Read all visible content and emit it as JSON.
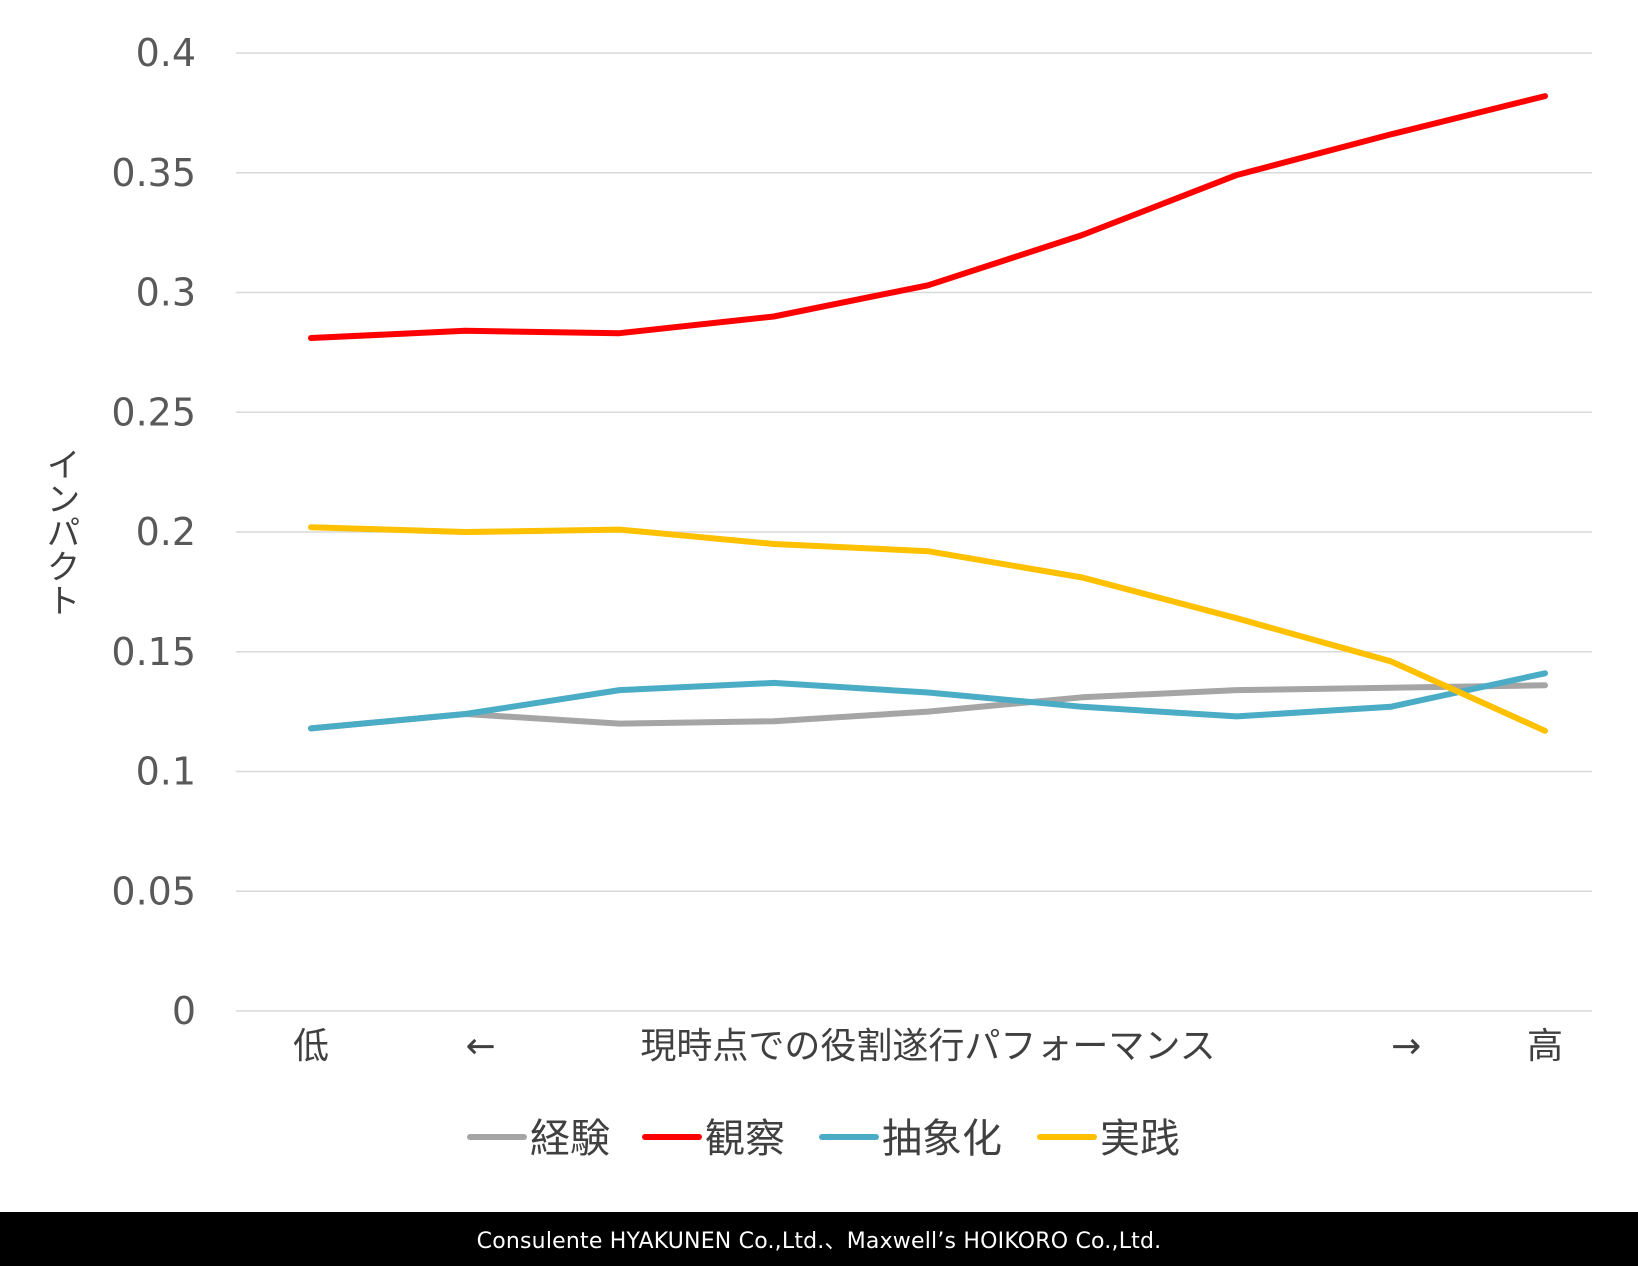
{
  "chart_data": {
    "type": "line",
    "ylabel": "インパクト",
    "ylim": [
      0,
      0.4
    ],
    "yticks": [
      "0",
      "0.05",
      "0.1",
      "0.15",
      "0.2",
      "0.25",
      "0.3",
      "0.35",
      "0.4"
    ],
    "grid": true,
    "legend_position": "bottom",
    "x_axis_labels": [
      "低",
      "←",
      "現時点での役割遂行パフォーマンス",
      "→",
      "高"
    ],
    "x": [
      1,
      2,
      3,
      4,
      5,
      6,
      7,
      8,
      9
    ],
    "series": [
      {
        "name": "経験",
        "color": "#a5a5a5",
        "values": [
          0.118,
          0.124,
          0.12,
          0.121,
          0.125,
          0.131,
          0.134,
          0.135,
          0.136
        ]
      },
      {
        "name": "観察",
        "color": "#ff0000",
        "values": [
          0.281,
          0.284,
          0.283,
          0.29,
          0.303,
          0.324,
          0.349,
          0.366,
          0.382
        ]
      },
      {
        "name": "抽象化",
        "color": "#4bacc6",
        "values": [
          0.118,
          0.124,
          0.134,
          0.137,
          0.133,
          0.127,
          0.123,
          0.127,
          0.141
        ]
      },
      {
        "name": "実践",
        "color": "#ffc000",
        "values": [
          0.202,
          0.2,
          0.201,
          0.195,
          0.192,
          0.181,
          0.164,
          0.146,
          0.117
        ]
      }
    ]
  },
  "footer": {
    "credit": "Consulente HYAKUNEN Co.,Ltd.、Maxwell’s HOIKORO Co.,Ltd."
  },
  "colors": {
    "gridline": "#d9d9d9",
    "footer_background": "#000000",
    "footer_text": "#ffffff"
  }
}
